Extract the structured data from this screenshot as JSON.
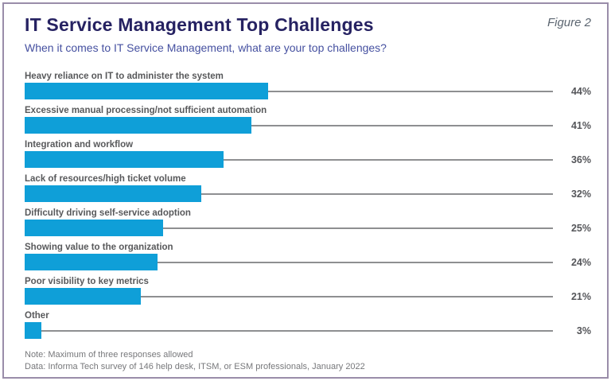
{
  "figure_label": "Figure 2",
  "header": {
    "title": "IT Service Management Top Challenges",
    "subtitle": "When it comes to IT Service Management, what are your top challenges?"
  },
  "chart_data": {
    "type": "bar",
    "orientation": "horizontal",
    "title": "IT Service Management Top Challenges",
    "subtitle": "When it comes to IT Service Management, what are your top challenges?",
    "categories": [
      "Heavy reliance on IT to administer the system",
      "Excessive manual processing/not sufficient automation",
      "Integration and workflow",
      "Lack of resources/high ticket volume",
      "Difficulty driving self-service adoption",
      "Showing value to the organization",
      "Poor visibility to key metrics",
      "Other"
    ],
    "values": [
      44,
      41,
      36,
      32,
      25,
      24,
      21,
      3
    ],
    "value_suffix": "%",
    "xlabel": "",
    "ylabel": "",
    "xlim": [
      0,
      100
    ],
    "grid": false,
    "legend": false,
    "layout_hints": {
      "value_labels_position": "right-aligned column",
      "leader_lines": true,
      "category_labels_position": "above bars"
    }
  },
  "notes": {
    "line1": "Note: Maximum of three responses allowed",
    "line2": "Data: Informa Tech survey of 146 help desk, ITSM, or ESM professionals, January 2022"
  },
  "colors": {
    "bar": "#0f9fd8",
    "title": "#262262",
    "subtitle": "#4550a0",
    "category_label": "#58595b",
    "value_label": "#55565a",
    "leader_line": "#8e8f91",
    "note_text": "#77787b",
    "figure_label": "#5b6570",
    "border": "#9a8da9"
  }
}
